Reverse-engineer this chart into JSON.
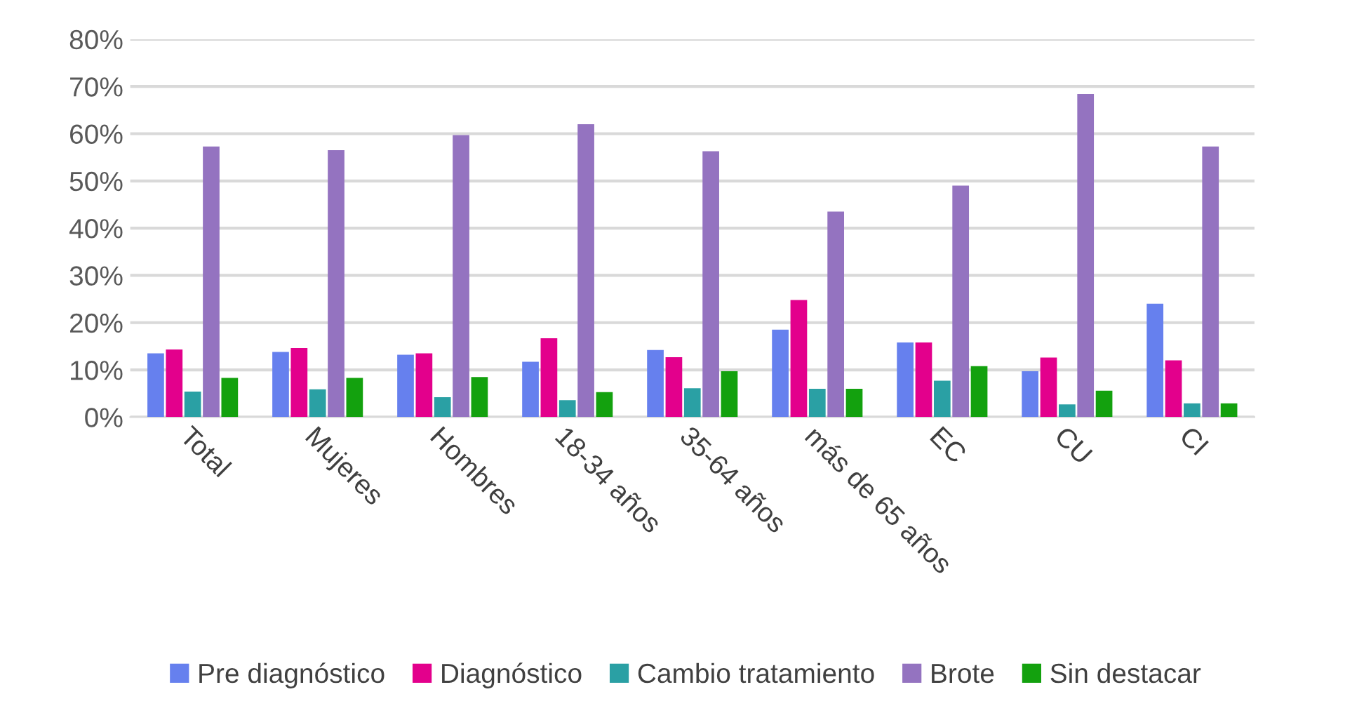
{
  "chart_data": {
    "type": "bar",
    "categories": [
      "Total",
      "Mujeres",
      "Hombres",
      "18-34 años",
      "35-64 años",
      "más de 65 años",
      "EC",
      "CU",
      "CI"
    ],
    "series": [
      {
        "name": "Pre diagnóstico",
        "color": "#6680ee",
        "values": [
          13.5,
          13.8,
          13.2,
          11.7,
          14.2,
          18.5,
          15.8,
          9.7,
          24.0
        ]
      },
      {
        "name": "Diagnóstico",
        "color": "#e3008c",
        "values": [
          14.3,
          14.6,
          13.5,
          16.7,
          12.7,
          24.8,
          15.8,
          12.6,
          12.0
        ]
      },
      {
        "name": "Cambio tratamiento",
        "color": "#2aa0a4",
        "values": [
          5.4,
          5.9,
          4.2,
          3.6,
          6.1,
          6.0,
          7.7,
          2.7,
          2.9
        ]
      },
      {
        "name": "Brote",
        "color": "#9473c0",
        "values": [
          57.3,
          56.5,
          59.7,
          62.0,
          56.3,
          43.5,
          49.0,
          68.4,
          57.3
        ]
      },
      {
        "name": "Sin destacar",
        "color": "#13a10e",
        "values": [
          8.3,
          8.3,
          8.5,
          5.3,
          9.7,
          6.0,
          10.8,
          5.6,
          2.9
        ]
      }
    ],
    "ylim": [
      0,
      80
    ],
    "yticks": [
      {
        "value": 0,
        "label": "0%"
      },
      {
        "value": 10,
        "label": "10%"
      },
      {
        "value": 20,
        "label": "20%"
      },
      {
        "value": 30,
        "label": "30%"
      },
      {
        "value": 40,
        "label": "40%"
      },
      {
        "value": 50,
        "label": "50%"
      },
      {
        "value": 60,
        "label": "60%"
      },
      {
        "value": 70,
        "label": "70%"
      },
      {
        "value": 80,
        "label": "80%"
      }
    ],
    "grid": "y",
    "legend": "bottom"
  }
}
